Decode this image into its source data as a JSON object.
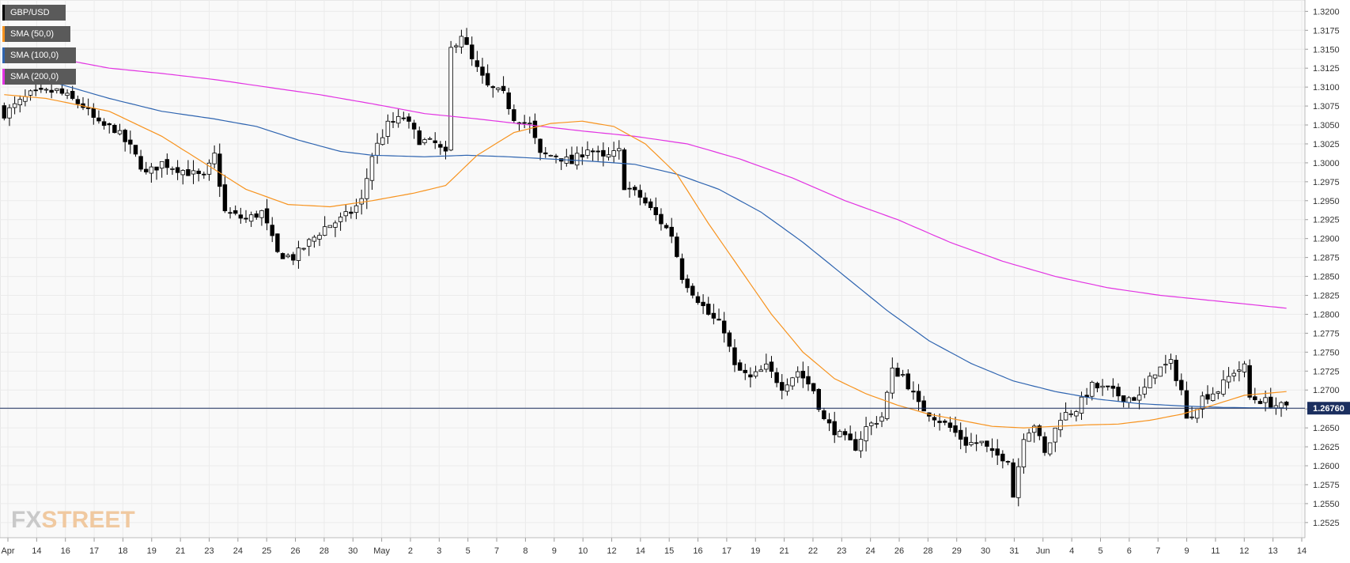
{
  "logo": {
    "fx": "FX",
    "street": "STREET"
  },
  "legend": [
    {
      "label": "GBP/USD",
      "color": "#000000"
    },
    {
      "label": "SMA (50,0)",
      "color": "#f7931e"
    },
    {
      "label": "SMA (100,0)",
      "color": "#2e64b0"
    },
    {
      "label": "SMA (200,0)",
      "color": "#e233e2"
    }
  ],
  "price_label": {
    "value": "1.26760",
    "bg": "#1b2f5f"
  },
  "chart_data": {
    "type": "candlestick",
    "title": "",
    "xlabel": "",
    "ylabel": "",
    "ylim": [
      1.2505,
      1.3215
    ],
    "yticks": [
      "1.2525",
      "1.2550",
      "1.2575",
      "1.2600",
      "1.2625",
      "1.2650",
      "1.2675",
      "1.2700",
      "1.2725",
      "1.2750",
      "1.2775",
      "1.2800",
      "1.2825",
      "1.2850",
      "1.2875",
      "1.2900",
      "1.2925",
      "1.2950",
      "1.2975",
      "1.3000",
      "1.3025",
      "1.3050",
      "1.3075",
      "1.3100",
      "1.3125",
      "1.3150",
      "1.3175",
      "1.3200"
    ],
    "xticks": [
      "Apr",
      "14",
      "16",
      "17",
      "18",
      "19",
      "21",
      "23",
      "24",
      "25",
      "26",
      "28",
      "30",
      "May",
      "2",
      "3",
      "5",
      "7",
      "8",
      "9",
      "10",
      "12",
      "14",
      "15",
      "16",
      "17",
      "19",
      "21",
      "22",
      "23",
      "24",
      "26",
      "28",
      "29",
      "30",
      "31",
      "Jun",
      "4",
      "5",
      "6",
      "7",
      "9",
      "11",
      "12",
      "13",
      "14"
    ],
    "current_price": 1.2676,
    "close_anchors": [
      [
        0,
        1.3065
      ],
      [
        5,
        1.309
      ],
      [
        10,
        1.3095
      ],
      [
        15,
        1.3075
      ],
      [
        18,
        1.305
      ],
      [
        21,
        1.3045
      ],
      [
        24,
        1.302
      ],
      [
        27,
        1.2985
      ],
      [
        30,
        1.3
      ],
      [
        34,
        1.299
      ],
      [
        38,
        1.298
      ],
      [
        40,
        1.301
      ],
      [
        42,
        1.2935
      ],
      [
        46,
        1.2925
      ],
      [
        49,
        1.2935
      ],
      [
        52,
        1.288
      ],
      [
        55,
        1.2875
      ],
      [
        58,
        1.2895
      ],
      [
        61,
        1.2915
      ],
      [
        64,
        1.2925
      ],
      [
        66,
        1.2935
      ],
      [
        68,
        1.295
      ],
      [
        70,
        1.301
      ],
      [
        73,
        1.305
      ],
      [
        76,
        1.306
      ],
      [
        79,
        1.303
      ],
      [
        82,
        1.3025
      ],
      [
        84,
        1.301
      ],
      [
        85,
        1.315
      ],
      [
        87,
        1.317
      ],
      [
        89,
        1.3135
      ],
      [
        92,
        1.31
      ],
      [
        95,
        1.309
      ],
      [
        97,
        1.306
      ],
      [
        100,
        1.305
      ],
      [
        102,
        1.301
      ],
      [
        105,
        1.301
      ],
      [
        108,
        1.3
      ],
      [
        111,
        1.302
      ],
      [
        114,
        1.3005
      ],
      [
        117,
        1.3015
      ],
      [
        118,
        1.297
      ],
      [
        121,
        1.2955
      ],
      [
        124,
        1.293
      ],
      [
        127,
        1.2905
      ],
      [
        129,
        1.285
      ],
      [
        131,
        1.283
      ],
      [
        134,
        1.28
      ],
      [
        137,
        1.278
      ],
      [
        139,
        1.273
      ],
      [
        142,
        1.2715
      ],
      [
        145,
        1.273
      ],
      [
        148,
        1.2705
      ],
      [
        151,
        1.2725
      ],
      [
        154,
        1.27
      ],
      [
        156,
        1.266
      ],
      [
        159,
        1.264
      ],
      [
        162,
        1.2625
      ],
      [
        164,
        1.265
      ],
      [
        167,
        1.2665
      ],
      [
        169,
        1.2725
      ],
      [
        171,
        1.272
      ],
      [
        174,
        1.268
      ],
      [
        177,
        1.2665
      ],
      [
        180,
        1.265
      ],
      [
        183,
        1.263
      ],
      [
        186,
        1.263
      ],
      [
        188,
        1.2615
      ],
      [
        191,
        1.261
      ],
      [
        192,
        1.256
      ],
      [
        194,
        1.264
      ],
      [
        196,
        1.2655
      ],
      [
        198,
        1.2615
      ],
      [
        201,
        1.2665
      ],
      [
        204,
        1.2675
      ],
      [
        207,
        1.2705
      ],
      [
        210,
        1.27
      ],
      [
        213,
        1.269
      ],
      [
        216,
        1.269
      ],
      [
        219,
        1.2725
      ],
      [
        222,
        1.2735
      ],
      [
        224,
        1.27
      ],
      [
        225,
        1.266
      ],
      [
        228,
        1.269
      ],
      [
        231,
        1.27
      ],
      [
        234,
        1.2725
      ],
      [
        236,
        1.273
      ],
      [
        237,
        1.269
      ],
      [
        240,
        1.2685
      ],
      [
        242,
        1.268
      ],
      [
        244,
        1.2676
      ]
    ],
    "sma50_anchors": [
      [
        0,
        1.309
      ],
      [
        8,
        1.3085
      ],
      [
        20,
        1.3068
      ],
      [
        30,
        1.3035
      ],
      [
        38,
        1.3
      ],
      [
        46,
        1.2965
      ],
      [
        54,
        1.2945
      ],
      [
        62,
        1.2942
      ],
      [
        70,
        1.295
      ],
      [
        78,
        1.296
      ],
      [
        84,
        1.297
      ],
      [
        90,
        1.301
      ],
      [
        97,
        1.304
      ],
      [
        104,
        1.3052
      ],
      [
        110,
        1.3055
      ],
      [
        116,
        1.3048
      ],
      [
        122,
        1.3025
      ],
      [
        128,
        1.2985
      ],
      [
        134,
        1.292
      ],
      [
        140,
        1.286
      ],
      [
        146,
        1.28
      ],
      [
        152,
        1.275
      ],
      [
        158,
        1.2715
      ],
      [
        164,
        1.2695
      ],
      [
        170,
        1.268
      ],
      [
        176,
        1.2668
      ],
      [
        182,
        1.266
      ],
      [
        188,
        1.2652
      ],
      [
        194,
        1.265
      ],
      [
        200,
        1.2652
      ],
      [
        206,
        1.2654
      ],
      [
        212,
        1.2655
      ],
      [
        218,
        1.266
      ],
      [
        224,
        1.2668
      ],
      [
        230,
        1.268
      ],
      [
        236,
        1.2693
      ],
      [
        244,
        1.2698
      ]
    ],
    "sma100_anchors": [
      [
        0,
        1.312
      ],
      [
        10,
        1.3105
      ],
      [
        20,
        1.3085
      ],
      [
        30,
        1.3068
      ],
      [
        40,
        1.3058
      ],
      [
        48,
        1.3048
      ],
      [
        56,
        1.303
      ],
      [
        64,
        1.3015
      ],
      [
        70,
        1.301
      ],
      [
        80,
        1.3008
      ],
      [
        88,
        1.301
      ],
      [
        96,
        1.3008
      ],
      [
        104,
        1.3005
      ],
      [
        112,
        1.3002
      ],
      [
        120,
        1.2998
      ],
      [
        128,
        1.2985
      ],
      [
        136,
        1.2965
      ],
      [
        144,
        1.2935
      ],
      [
        152,
        1.2895
      ],
      [
        160,
        1.285
      ],
      [
        168,
        1.2805
      ],
      [
        176,
        1.2765
      ],
      [
        184,
        1.2735
      ],
      [
        192,
        1.2712
      ],
      [
        200,
        1.2698
      ],
      [
        208,
        1.2688
      ],
      [
        216,
        1.2682
      ],
      [
        224,
        1.2679
      ],
      [
        232,
        1.2677
      ],
      [
        244,
        1.2676
      ]
    ],
    "sma200_anchors": [
      [
        0,
        1.315
      ],
      [
        10,
        1.3138
      ],
      [
        20,
        1.3125
      ],
      [
        30,
        1.3118
      ],
      [
        40,
        1.311
      ],
      [
        50,
        1.31
      ],
      [
        60,
        1.309
      ],
      [
        70,
        1.3078
      ],
      [
        80,
        1.3065
      ],
      [
        90,
        1.3058
      ],
      [
        100,
        1.305
      ],
      [
        110,
        1.3042
      ],
      [
        120,
        1.3035
      ],
      [
        130,
        1.3025
      ],
      [
        140,
        1.3005
      ],
      [
        150,
        1.298
      ],
      [
        160,
        1.295
      ],
      [
        170,
        1.2925
      ],
      [
        180,
        1.2895
      ],
      [
        190,
        1.287
      ],
      [
        200,
        1.285
      ],
      [
        210,
        1.2835
      ],
      [
        220,
        1.2825
      ],
      [
        230,
        1.2818
      ],
      [
        244,
        1.2808
      ]
    ]
  }
}
